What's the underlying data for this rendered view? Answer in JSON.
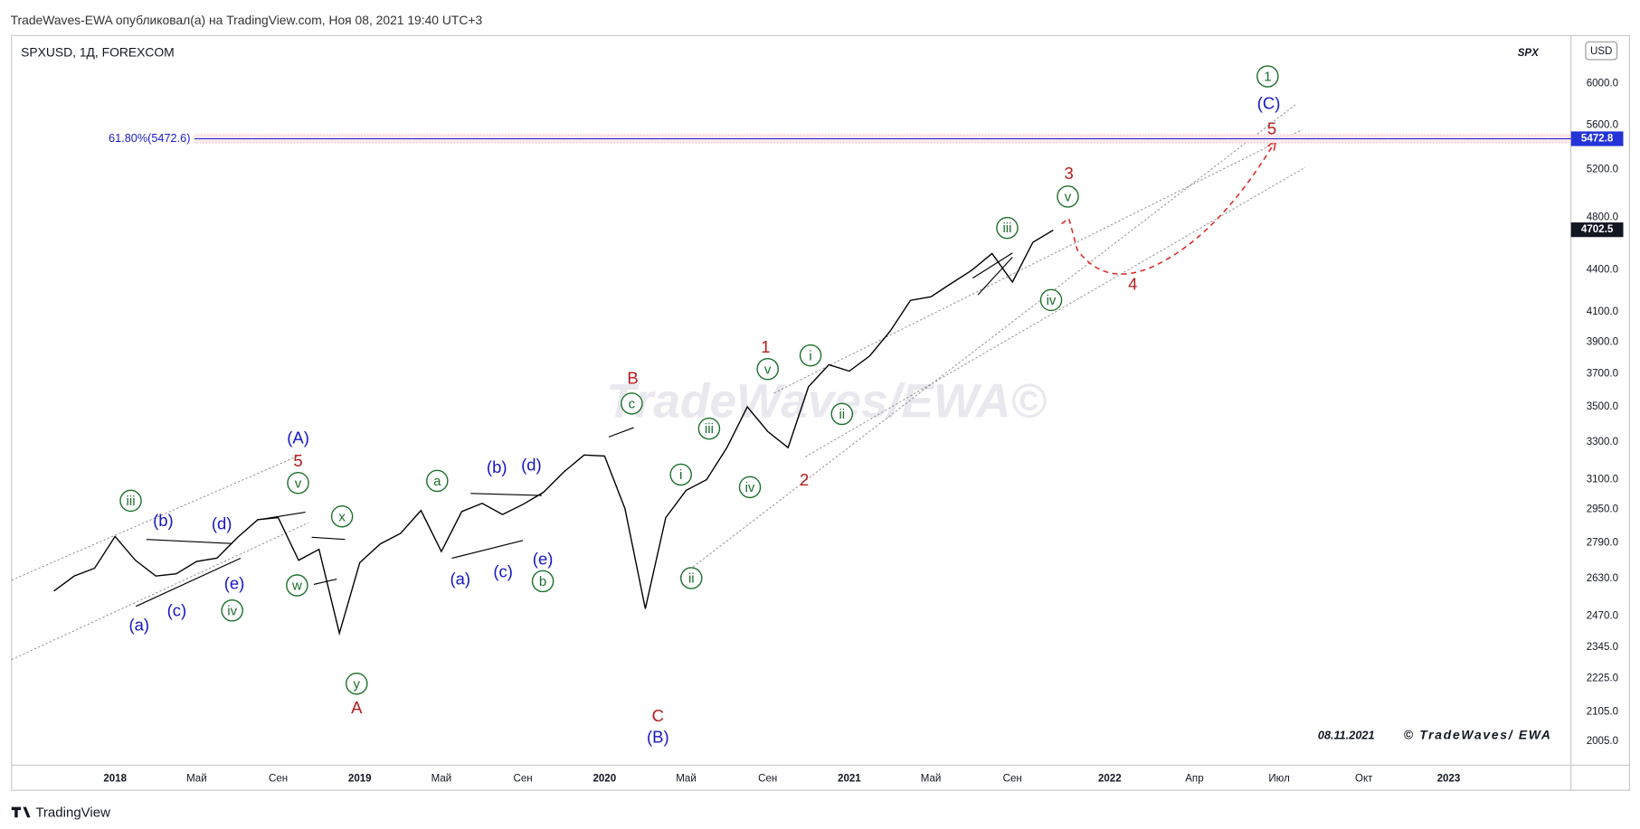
{
  "header": {
    "publisher": "TradeWaves-EWA опубликовал(а) на TradingView.com, Ноя 08, 2021 19:40 UTC+3"
  },
  "chart_data": {
    "type": "line",
    "title": "SPXUSD, 1Д, FOREXCOM",
    "symbol": "SPX",
    "currency": "USD",
    "categories": [
      null,
      null,
      null,
      "2018",
      null,
      null,
      null,
      "Май",
      null,
      null,
      null,
      "Сен",
      null,
      null,
      null,
      "2019",
      null,
      null,
      null,
      "Май",
      null,
      null,
      null,
      "Сен",
      null,
      null,
      null,
      "2020",
      null,
      null,
      null,
      "Май",
      null,
      null,
      null,
      "Сен",
      null,
      null,
      null,
      "2021",
      null,
      null,
      null,
      "Май",
      null,
      null,
      null,
      "Сен",
      null,
      null,
      null,
      "2022",
      null,
      null,
      "Апр",
      null,
      null,
      "Июл",
      null,
      null,
      "Окт",
      null,
      null,
      "2023"
    ],
    "values": [
      2575,
      2640,
      2675,
      2820,
      2710,
      2640,
      2650,
      2705,
      2720,
      2815,
      2900,
      2910,
      2710,
      2760,
      2400,
      2700,
      2785,
      2835,
      2945,
      2750,
      2940,
      2980,
      2925,
      2975,
      3035,
      3140,
      3230,
      3225,
      2955,
      2500,
      2910,
      3045,
      3100,
      3270,
      3500,
      3360,
      3270,
      3620,
      3755,
      3715,
      3810,
      3970,
      4180,
      4205,
      4300,
      4395,
      4520,
      4310,
      4605,
      4700,
      null,
      null,
      null,
      null,
      null,
      null,
      null,
      null,
      null,
      null,
      null,
      null,
      null,
      null
    ],
    "color": "#000000",
    "log": true,
    "grid": false,
    "ylim": [
      1926,
      6500
    ],
    "yticks": [
      {
        "value": 2005,
        "label": "2005.0"
      },
      {
        "value": 2105,
        "label": "2105.0"
      },
      {
        "value": 2225,
        "label": "2225.0"
      },
      {
        "value": 2345,
        "label": "2345.0"
      },
      {
        "value": 2470,
        "label": "2470.0"
      },
      {
        "value": 2630,
        "label": "2630.0"
      },
      {
        "value": 2790,
        "label": "2790.0"
      },
      {
        "value": 2950,
        "label": "2950.0"
      },
      {
        "value": 3100,
        "label": "3100.0"
      },
      {
        "value": 3300,
        "label": "3300.0"
      },
      {
        "value": 3500,
        "label": "3500.0"
      },
      {
        "value": 3700,
        "label": "3700.0"
      },
      {
        "value": 3900,
        "label": "3900.0"
      },
      {
        "value": 4100,
        "label": "4100.0"
      },
      {
        "value": 4400,
        "label": "4400.0"
      },
      {
        "value": 4800,
        "label": "4800.0"
      },
      {
        "value": 5200,
        "label": "5200.0"
      },
      {
        "value": 5600,
        "label": "5600.0"
      },
      {
        "value": 6000,
        "label": "6000.0"
      }
    ],
    "fib": {
      "label": "61.80%(5472.6)",
      "value": 5472.6,
      "color": "#1a1ad0"
    },
    "price_tags": [
      {
        "value": 5472.8,
        "color": "#2434d8"
      },
      {
        "value": 4702.5,
        "color": "#131722"
      }
    ],
    "annotations": [
      {
        "text": "iii",
        "color": "#1b6e2a"
      },
      {
        "text": "v",
        "color": "#1b6e2a"
      },
      {
        "text": "x",
        "color": "#1b6e2a"
      },
      {
        "text": "w",
        "color": "#1b6e2a"
      },
      {
        "text": "iv",
        "color": "#1b6e2a"
      },
      {
        "text": "y",
        "color": "#1b6e2a"
      },
      {
        "text": "a",
        "color": "#1b6e2a"
      },
      {
        "text": "b",
        "color": "#1b6e2a"
      },
      {
        "text": "c",
        "color": "#1b6e2a"
      },
      {
        "text": "i",
        "color": "#1b6e2a"
      },
      {
        "text": "ii",
        "color": "#1b6e2a"
      },
      {
        "text": "iii",
        "color": "#1b6e2a"
      },
      {
        "text": "iv",
        "color": "#1b6e2a"
      },
      {
        "text": "v",
        "color": "#1b6e2a"
      },
      {
        "text": "i",
        "color": "#1b6e2a"
      },
      {
        "text": "ii",
        "color": "#1b6e2a"
      },
      {
        "text": "iii",
        "color": "#1b6e2a"
      },
      {
        "text": "v",
        "color": "#1b6e2a"
      },
      {
        "text": "iv",
        "color": "#1b6e2a"
      },
      {
        "text": "1",
        "color": "#1b6e2a"
      },
      {
        "text": "(b)",
        "color": "#1515c8"
      },
      {
        "text": "(d)",
        "color": "#1515c8"
      },
      {
        "text": "(a)",
        "color": "#1515c8"
      },
      {
        "text": "(c)",
        "color": "#1515c8"
      },
      {
        "text": "(e)",
        "color": "#1515c8"
      },
      {
        "text": "(A)",
        "color": "#1515c8"
      },
      {
        "text": "(a)",
        "color": "#1515c8"
      },
      {
        "text": "(c)",
        "color": "#1515c8"
      },
      {
        "text": "(b)",
        "color": "#1515c8"
      },
      {
        "text": "(d)",
        "color": "#1515c8"
      },
      {
        "text": "(e)",
        "color": "#1515c8"
      },
      {
        "text": "(B)",
        "color": "#1515c8"
      },
      {
        "text": "(C)",
        "color": "#1515c8"
      },
      {
        "text": "5",
        "color": "#b71c1c"
      },
      {
        "text": "A",
        "color": "#b71c1c"
      },
      {
        "text": "B",
        "color": "#b71c1c"
      },
      {
        "text": "C",
        "color": "#b71c1c"
      },
      {
        "text": "1",
        "color": "#b71c1c"
      },
      {
        "text": "2",
        "color": "#b71c1c"
      },
      {
        "text": "3",
        "color": "#b71c1c"
      },
      {
        "text": "4",
        "color": "#b71c1c"
      },
      {
        "text": "5",
        "color": "#b71c1c"
      }
    ],
    "date_stamp": "08.11.2021",
    "copyright": "© TradeWaves/ EWA",
    "watermark": "TradeWaves/EWA©"
  },
  "footer": {
    "brand": "TradingView"
  }
}
